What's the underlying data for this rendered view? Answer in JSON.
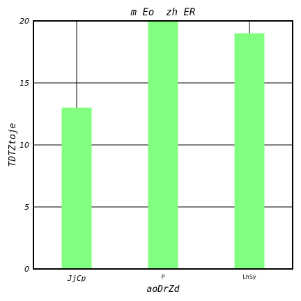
{
  "chart_data": {
    "type": "bar",
    "title": "m Eo  zh ER",
    "xlabel": "aoDrZd",
    "ylabel": "TDTZtoje",
    "categories": [
      "JjCp",
      "P",
      "LhSy"
    ],
    "values": [
      13,
      20,
      19
    ],
    "ylim": [
      0,
      20
    ],
    "yticks": [
      0,
      5,
      10,
      15,
      20
    ],
    "grid": true,
    "legend": "none",
    "bar_color": "#80ff80"
  }
}
